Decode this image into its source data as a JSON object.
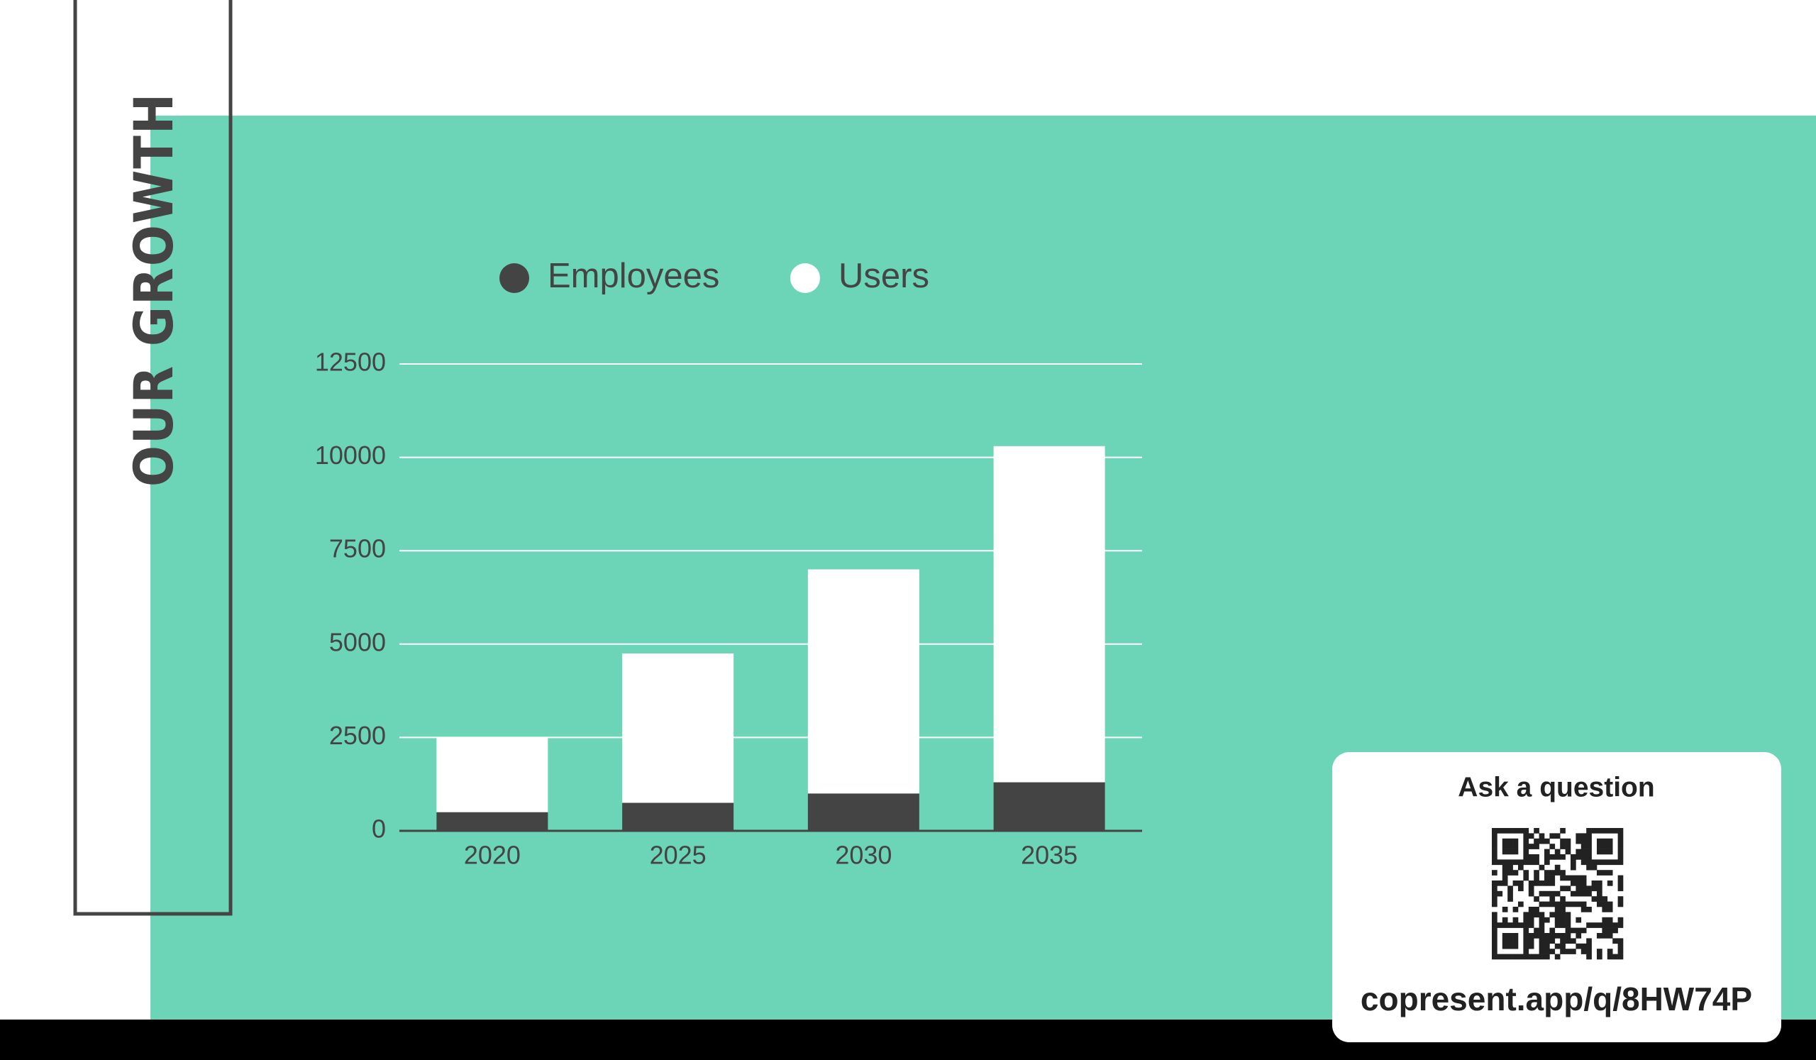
{
  "chart_data": {
    "type": "bar",
    "stacked": true,
    "title": "OUR GROWTH",
    "categories": [
      "2020",
      "2025",
      "2030",
      "2035"
    ],
    "series": [
      {
        "name": "Employees",
        "color": "#444444",
        "values": [
          500,
          750,
          1000,
          1300
        ]
      },
      {
        "name": "Users",
        "color": "#ffffff",
        "values": [
          2000,
          4000,
          6000,
          9000
        ]
      }
    ],
    "ylim": [
      0,
      12500
    ],
    "yticks": [
      0,
      2500,
      5000,
      7500,
      10000,
      12500
    ],
    "grid": true,
    "legend": "top"
  },
  "question_card": {
    "heading": "Ask a question",
    "url": "copresent.app/q/8HW74P"
  }
}
